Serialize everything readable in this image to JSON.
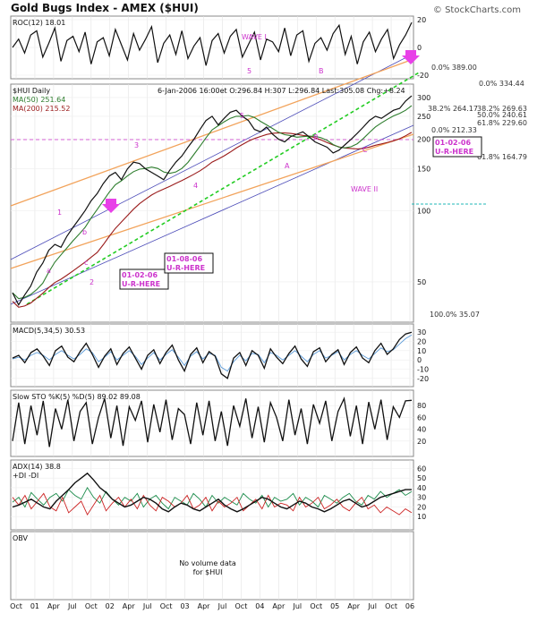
{
  "header": {
    "title": "Gold Bugs Index - AMEX ($HUI)",
    "brand": "© StockCharts.com"
  },
  "colors": {
    "price": "#111111",
    "ma50": "#2d7d2d",
    "ma200": "#9a1b1b",
    "wave": "#cc33cc",
    "fib": "#1a8c1a",
    "orange_line": "#f2a35b",
    "cyan_line": "#1fb7b7"
  },
  "chart_data": [
    {
      "type": "line",
      "panel": "roc",
      "label": "ROC(12)",
      "value": "18.01",
      "annotation": "WAVE I",
      "marks": [
        "5",
        "B"
      ],
      "y_ticks": [
        "20",
        "0",
        "-20"
      ],
      "series": [
        {
          "values": [
            0,
            6,
            -4,
            9,
            12,
            -7,
            3,
            14,
            -10,
            5,
            8,
            -3,
            11,
            -12,
            4,
            7,
            -6,
            13,
            2,
            -9,
            10,
            -2,
            6,
            15,
            -11,
            3,
            9,
            -5,
            12,
            -8,
            1,
            7,
            -13,
            5,
            10,
            -4,
            8,
            13,
            -7,
            2,
            11,
            -9,
            6,
            4,
            -3,
            14,
            -6,
            9,
            12,
            -10,
            3,
            7,
            -2,
            10,
            16,
            -5,
            8,
            -12,
            4,
            11,
            -3,
            6,
            13,
            -8,
            2,
            9,
            18
          ]
        }
      ]
    },
    {
      "type": "line",
      "panel": "price",
      "label": "$HUI Daily",
      "date": "6-Jan-2006",
      "time": "16:00et",
      "ohlc": {
        "O": "296.84",
        "H": "307",
        "L": "296.84",
        "Last": "305.08",
        "Chg": "+8.24"
      },
      "ohlc_labels": [
        "O:",
        "H:",
        "L:",
        "Last:",
        "Chg:"
      ],
      "header_text": "6-Jan-2006 16:00et O:296.84 H:307 L:296.84 Last:305.08 Chg:+8.24",
      "ma": [
        {
          "name": "MA(50)",
          "value": "251.64"
        },
        {
          "name": "MA(200)",
          "value": "215.52"
        }
      ],
      "x_ticks": [
        "Oct",
        "01",
        "Apr",
        "Jul",
        "Oct",
        "02",
        "Apr",
        "Jul",
        "Oct",
        "03",
        "Apr",
        "Jul",
        "Oct",
        "04",
        "Apr",
        "Jul",
        "Oct",
        "05",
        "Apr",
        "Jul",
        "Oct",
        "06"
      ],
      "y_ticks": [
        "300",
        "250",
        "200",
        "150",
        "100",
        "50"
      ],
      "y_scale": "log",
      "fib_labels": [
        "0.0% 389.00",
        "0.0% 334.44",
        "38.2% 264.17",
        "38.2% 269.63",
        "50.0% 240.61",
        "61.8% 229.60",
        "0.0% 212.33",
        "61.8% 164.79",
        "100.0% 35.07"
      ],
      "wave_labels": [
        "1",
        "2",
        "3",
        "4",
        "5",
        "a",
        "b",
        "c",
        "A",
        "B",
        "C",
        "WAVE II"
      ],
      "callouts": [
        {
          "date": "01-02-06",
          "text": "U-R-HERE"
        },
        {
          "date": "01-08-06",
          "text": "U-R-HERE"
        },
        {
          "date": "01-02-06",
          "text": "U-R-HERE"
        }
      ],
      "series": [
        {
          "values": [
            45,
            40,
            44,
            48,
            55,
            60,
            68,
            72,
            70,
            78,
            85,
            92,
            100,
            110,
            118,
            130,
            140,
            145,
            135,
            150,
            160,
            158,
            150,
            145,
            140,
            135,
            148,
            160,
            170,
            185,
            200,
            220,
            240,
            250,
            230,
            245,
            260,
            265,
            250,
            240,
            220,
            215,
            225,
            210,
            200,
            195,
            205,
            210,
            215,
            205,
            195,
            190,
            185,
            175,
            180,
            190,
            200,
            212,
            225,
            240,
            250,
            245,
            255,
            265,
            270,
            290,
            305
          ]
        }
      ]
    },
    {
      "type": "line",
      "panel": "macd",
      "label": "MACD(5,34,5)",
      "value": "30.53",
      "y_ticks": [
        "30",
        "20",
        "10",
        "0",
        "-10",
        "-20"
      ],
      "series": [
        {
          "values": [
            2,
            5,
            -3,
            8,
            12,
            4,
            -6,
            10,
            15,
            3,
            -2,
            9,
            18,
            6,
            -8,
            4,
            12,
            -5,
            7,
            14,
            2,
            -10,
            5,
            11,
            -4,
            8,
            16,
            0,
            -12,
            6,
            13,
            -3,
            9,
            4,
            -15,
            -20,
            2,
            8,
            -6,
            10,
            5,
            -9,
            12,
            3,
            -4,
            7,
            15,
            1,
            -7,
            9,
            13,
            -2,
            6,
            11,
            -5,
            8,
            14,
            2,
            -3,
            10,
            18,
            6,
            12,
            22,
            28,
            30
          ]
        },
        {
          "values": [
            1,
            3,
            0,
            5,
            8,
            5,
            0,
            6,
            10,
            5,
            1,
            6,
            12,
            8,
            -2,
            3,
            9,
            0,
            5,
            10,
            4,
            -5,
            2,
            8,
            0,
            6,
            11,
            3,
            -6,
            4,
            9,
            1,
            7,
            5,
            -8,
            -12,
            -2,
            5,
            -1,
            7,
            6,
            -3,
            8,
            5,
            0,
            5,
            10,
            4,
            -2,
            6,
            10,
            2,
            5,
            9,
            0,
            6,
            10,
            5,
            1,
            7,
            13,
            9,
            11,
            17,
            23,
            27
          ]
        }
      ]
    },
    {
      "type": "line",
      "panel": "sto",
      "label": "Slow STO %K(5) %D(5)",
      "value1": "89.02",
      "value2": "89.08",
      "y_ticks": [
        "80",
        "60",
        "40",
        "20"
      ],
      "series": [
        {
          "values": [
            20,
            85,
            15,
            80,
            30,
            88,
            10,
            75,
            40,
            90,
            20,
            70,
            85,
            15,
            60,
            92,
            25,
            80,
            12,
            78,
            55,
            88,
            18,
            82,
            35,
            90,
            22,
            75,
            65,
            15,
            85,
            30,
            88,
            20,
            70,
            12,
            80,
            45,
            92,
            25,
            78,
            18,
            85,
            60,
            20,
            90,
            30,
            75,
            15,
            82,
            50,
            88,
            20,
            70,
            92,
            28,
            80,
            15,
            86,
            40,
            90,
            22,
            78,
            60,
            88,
            89
          ]
        }
      ]
    },
    {
      "type": "line",
      "panel": "adx",
      "label": "ADX(14)",
      "value": "38.8",
      "di_labels": [
        "+DI",
        "-DI"
      ],
      "y_ticks": [
        "60",
        "50",
        "40",
        "30",
        "20",
        "10"
      ],
      "series": [
        {
          "name": "ADX(14)",
          "values": [
            20,
            22,
            25,
            28,
            24,
            20,
            18,
            26,
            32,
            38,
            45,
            50,
            55,
            48,
            40,
            35,
            28,
            24,
            20,
            22,
            26,
            30,
            28,
            24,
            18,
            15,
            20,
            24,
            22,
            18,
            16,
            20,
            24,
            28,
            22,
            18,
            15,
            18,
            22,
            26,
            30,
            28,
            24,
            20,
            18,
            22,
            26,
            24,
            20,
            18,
            15,
            18,
            22,
            26,
            28,
            24,
            20,
            22,
            26,
            30,
            32,
            34,
            36,
            38,
            38
          ]
        },
        {
          "name": "+DI",
          "values": [
            25,
            30,
            20,
            35,
            28,
            22,
            30,
            34,
            26,
            38,
            32,
            28,
            40,
            30,
            24,
            36,
            28,
            22,
            30,
            26,
            34,
            20,
            28,
            32,
            24,
            18,
            30,
            26,
            22,
            34,
            28,
            20,
            32,
            24,
            30,
            26,
            22,
            34,
            28,
            24,
            32,
            20,
            30,
            26,
            28,
            34,
            22,
            30,
            26,
            20,
            32,
            28,
            24,
            30,
            34,
            26,
            22,
            32,
            28,
            36,
            30,
            34,
            38,
            32,
            36
          ]
        },
        {
          "name": "-DI",
          "values": [
            30,
            22,
            32,
            18,
            26,
            34,
            20,
            16,
            30,
            14,
            20,
            26,
            12,
            22,
            32,
            16,
            24,
            30,
            20,
            28,
            18,
            32,
            22,
            16,
            30,
            26,
            20,
            24,
            32,
            18,
            22,
            30,
            16,
            26,
            20,
            24,
            30,
            16,
            22,
            28,
            18,
            32,
            20,
            24,
            22,
            16,
            30,
            20,
            24,
            30,
            18,
            22,
            28,
            20,
            16,
            24,
            30,
            18,
            22,
            14,
            20,
            16,
            12,
            18,
            14
          ]
        }
      ]
    },
    {
      "type": "line",
      "panel": "obv",
      "label": "OBV",
      "note_lines": [
        "No volume data",
        "for $HUI"
      ]
    }
  ]
}
